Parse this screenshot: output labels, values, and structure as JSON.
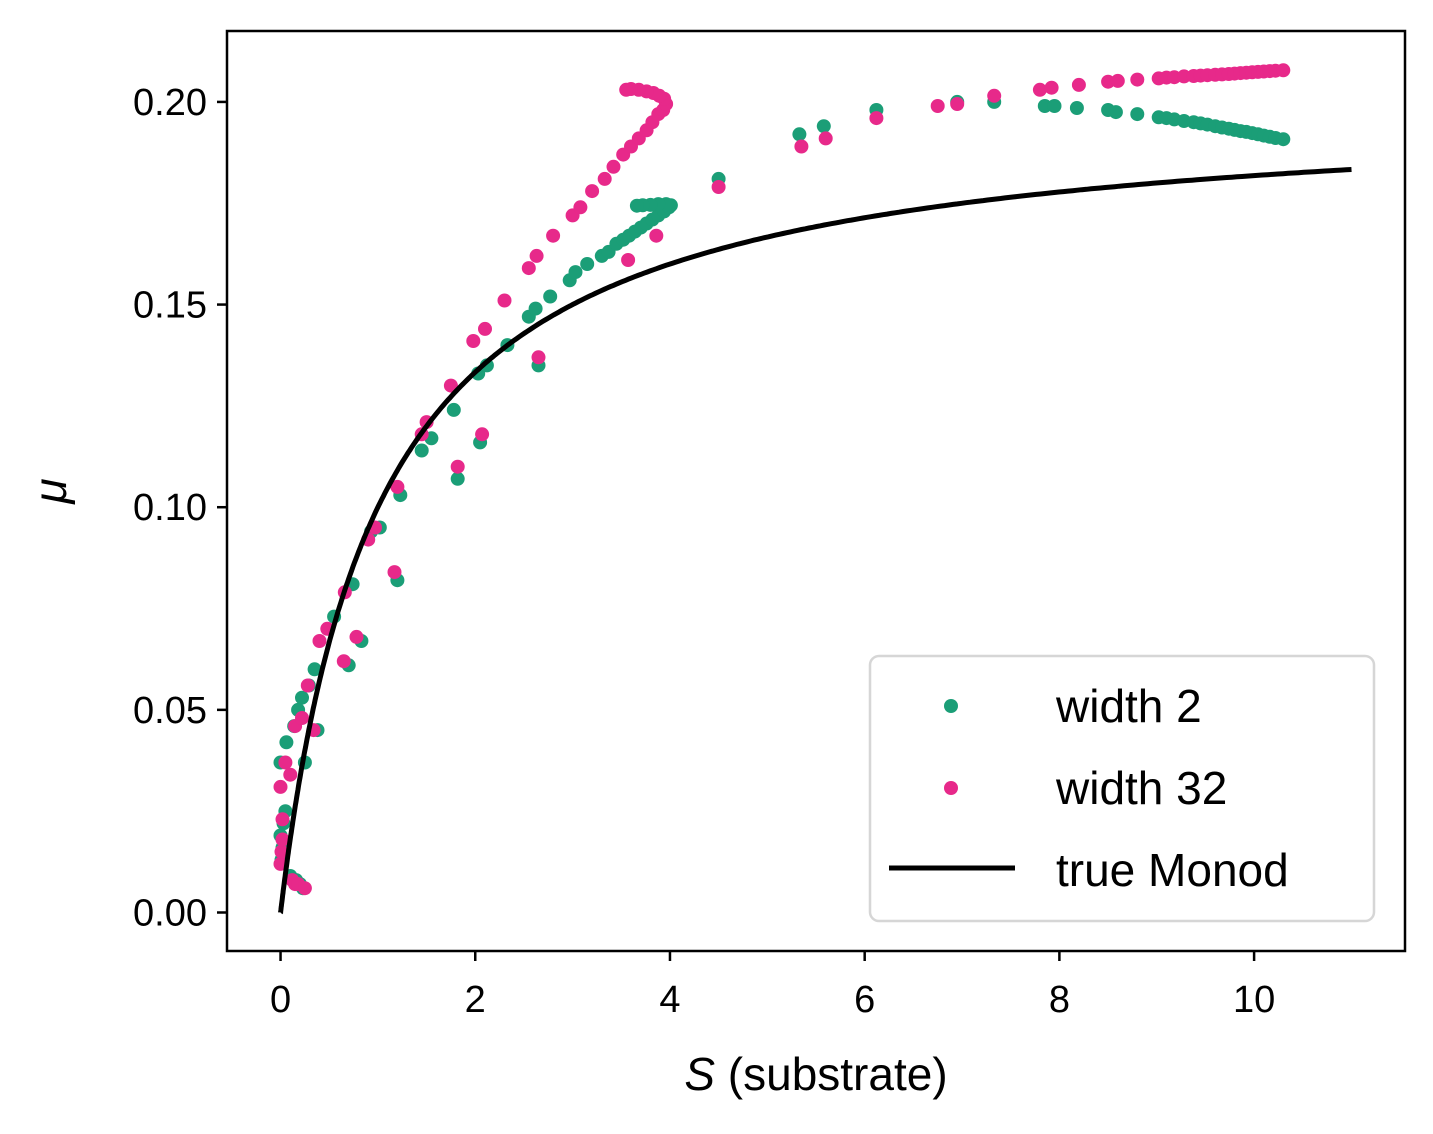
{
  "colors": {
    "series_width_2": "#1b9e77",
    "series_width_32": "#e7298a",
    "true_monod": "#000000",
    "axes": "#000000",
    "legend_border": "#d6d6d6"
  },
  "chart_data": {
    "type": "scatter",
    "xlabel_symbol": "S",
    "xlabel_rest": " (substrate)",
    "ylabel": "μ",
    "xlim": [
      -0.55,
      11.55
    ],
    "ylim": [
      -0.0095,
      0.2175
    ],
    "xticks": [
      0,
      2,
      4,
      6,
      8,
      10
    ],
    "xtick_labels": [
      "0",
      "2",
      "4",
      "6",
      "8",
      "10"
    ],
    "yticks": [
      0.0,
      0.05,
      0.1,
      0.15,
      0.2
    ],
    "ytick_labels": [
      "0.00",
      "0.05",
      "0.10",
      "0.15",
      "0.20"
    ],
    "grid": false,
    "legend_position": "lower right",
    "legend": [
      {
        "label": "width 2",
        "marker": "point"
      },
      {
        "label": "width 32",
        "marker": "point"
      },
      {
        "label": "true Monod",
        "marker": "line"
      }
    ],
    "line_series": {
      "name": "true Monod",
      "function": "mu_max * S / (K_s + S)",
      "mu_max": 0.2,
      "K_s": 1.0,
      "x_range": [
        0,
        11
      ]
    },
    "series": [
      {
        "name": "width 2",
        "points": [
          [
            0.01,
            0.013
          ],
          [
            0.02,
            0.016
          ],
          [
            0.0,
            0.019
          ],
          [
            0.03,
            0.022
          ],
          [
            0.05,
            0.025
          ],
          [
            0.0,
            0.037
          ],
          [
            0.06,
            0.042
          ],
          [
            0.14,
            0.046
          ],
          [
            0.18,
            0.05
          ],
          [
            0.22,
            0.053
          ],
          [
            0.25,
            0.037
          ],
          [
            0.29,
            0.056
          ],
          [
            0.1,
            0.009
          ],
          [
            0.16,
            0.008
          ],
          [
            0.2,
            0.007
          ],
          [
            0.23,
            0.006
          ],
          [
            0.38,
            0.045
          ],
          [
            0.35,
            0.06
          ],
          [
            0.55,
            0.073
          ],
          [
            0.7,
            0.061
          ],
          [
            0.74,
            0.081
          ],
          [
            0.83,
            0.067
          ],
          [
            0.93,
            0.094
          ],
          [
            1.02,
            0.095
          ],
          [
            1.2,
            0.082
          ],
          [
            1.23,
            0.103
          ],
          [
            1.45,
            0.114
          ],
          [
            1.55,
            0.117
          ],
          [
            1.78,
            0.124
          ],
          [
            1.82,
            0.107
          ],
          [
            2.03,
            0.133
          ],
          [
            2.05,
            0.116
          ],
          [
            2.12,
            0.135
          ],
          [
            2.33,
            0.14
          ],
          [
            2.55,
            0.147
          ],
          [
            2.62,
            0.149
          ],
          [
            2.65,
            0.135
          ],
          [
            2.77,
            0.152
          ],
          [
            2.97,
            0.156
          ],
          [
            3.03,
            0.158
          ],
          [
            3.15,
            0.16
          ],
          [
            3.3,
            0.162
          ],
          [
            3.37,
            0.163
          ],
          [
            3.45,
            0.165
          ],
          [
            3.52,
            0.166
          ],
          [
            3.58,
            0.167
          ],
          [
            3.64,
            0.168
          ],
          [
            3.7,
            0.169
          ],
          [
            3.76,
            0.17
          ],
          [
            3.82,
            0.171
          ],
          [
            3.88,
            0.172
          ],
          [
            3.94,
            0.173
          ],
          [
            3.99,
            0.174
          ],
          [
            4.01,
            0.1745
          ],
          [
            3.96,
            0.1748
          ],
          [
            3.88,
            0.1748
          ],
          [
            3.8,
            0.1746
          ],
          [
            3.72,
            0.1745
          ],
          [
            3.66,
            0.1744
          ],
          [
            4.5,
            0.181
          ],
          [
            5.33,
            0.192
          ],
          [
            5.58,
            0.194
          ],
          [
            6.12,
            0.198
          ],
          [
            6.95,
            0.2
          ],
          [
            7.33,
            0.2
          ],
          [
            7.85,
            0.199
          ],
          [
            7.95,
            0.199
          ],
          [
            8.18,
            0.1985
          ],
          [
            8.5,
            0.198
          ],
          [
            8.58,
            0.1975
          ],
          [
            8.8,
            0.197
          ],
          [
            9.02,
            0.1962
          ],
          [
            9.1,
            0.196
          ],
          [
            9.18,
            0.1957
          ],
          [
            9.28,
            0.1953
          ],
          [
            9.38,
            0.195
          ],
          [
            9.45,
            0.1947
          ],
          [
            9.52,
            0.1944
          ],
          [
            9.6,
            0.194
          ],
          [
            9.67,
            0.1937
          ],
          [
            9.74,
            0.1934
          ],
          [
            9.8,
            0.1931
          ],
          [
            9.86,
            0.1928
          ],
          [
            9.92,
            0.1926
          ],
          [
            9.98,
            0.1923
          ],
          [
            10.04,
            0.192
          ],
          [
            10.1,
            0.1917
          ],
          [
            10.16,
            0.1914
          ],
          [
            10.22,
            0.1911
          ],
          [
            10.3,
            0.1908
          ]
        ]
      },
      {
        "name": "width 32",
        "points": [
          [
            0.0,
            0.012
          ],
          [
            0.01,
            0.015
          ],
          [
            0.02,
            0.018
          ],
          [
            0.0,
            0.031
          ],
          [
            0.02,
            0.023
          ],
          [
            0.05,
            0.037
          ],
          [
            0.1,
            0.034
          ],
          [
            0.12,
            0.008
          ],
          [
            0.15,
            0.007
          ],
          [
            0.18,
            0.007
          ],
          [
            0.25,
            0.006
          ],
          [
            0.15,
            0.046
          ],
          [
            0.22,
            0.048
          ],
          [
            0.28,
            0.056
          ],
          [
            0.34,
            0.045
          ],
          [
            0.4,
            0.067
          ],
          [
            0.48,
            0.07
          ],
          [
            0.65,
            0.062
          ],
          [
            0.66,
            0.079
          ],
          [
            0.78,
            0.068
          ],
          [
            0.9,
            0.092
          ],
          [
            0.97,
            0.095
          ],
          [
            1.17,
            0.084
          ],
          [
            1.2,
            0.105
          ],
          [
            1.45,
            0.118
          ],
          [
            1.5,
            0.121
          ],
          [
            1.75,
            0.13
          ],
          [
            1.82,
            0.11
          ],
          [
            1.98,
            0.141
          ],
          [
            2.07,
            0.118
          ],
          [
            2.1,
            0.144
          ],
          [
            2.3,
            0.151
          ],
          [
            2.55,
            0.159
          ],
          [
            2.63,
            0.162
          ],
          [
            2.65,
            0.137
          ],
          [
            2.8,
            0.167
          ],
          [
            3.0,
            0.172
          ],
          [
            3.08,
            0.174
          ],
          [
            3.2,
            0.178
          ],
          [
            3.33,
            0.181
          ],
          [
            3.42,
            0.184
          ],
          [
            3.52,
            0.187
          ],
          [
            3.6,
            0.189
          ],
          [
            3.68,
            0.191
          ],
          [
            3.76,
            0.193
          ],
          [
            3.82,
            0.195
          ],
          [
            3.88,
            0.197
          ],
          [
            3.93,
            0.198
          ],
          [
            3.96,
            0.1995
          ],
          [
            3.94,
            0.2008
          ],
          [
            3.89,
            0.2015
          ],
          [
            3.83,
            0.2022
          ],
          [
            3.76,
            0.2026
          ],
          [
            3.68,
            0.203
          ],
          [
            3.6,
            0.2032
          ],
          [
            3.55,
            0.203
          ],
          [
            3.57,
            0.161
          ],
          [
            3.86,
            0.167
          ],
          [
            4.5,
            0.179
          ],
          [
            5.35,
            0.189
          ],
          [
            5.6,
            0.191
          ],
          [
            6.12,
            0.196
          ],
          [
            6.75,
            0.199
          ],
          [
            6.95,
            0.1995
          ],
          [
            7.33,
            0.2015
          ],
          [
            7.8,
            0.203
          ],
          [
            7.92,
            0.2035
          ],
          [
            8.2,
            0.2042
          ],
          [
            8.5,
            0.205
          ],
          [
            8.6,
            0.2052
          ],
          [
            8.8,
            0.2055
          ],
          [
            9.02,
            0.2058
          ],
          [
            9.1,
            0.206
          ],
          [
            9.18,
            0.2061
          ],
          [
            9.28,
            0.2063
          ],
          [
            9.38,
            0.2064
          ],
          [
            9.45,
            0.2065
          ],
          [
            9.52,
            0.2066
          ],
          [
            9.6,
            0.2067
          ],
          [
            9.67,
            0.2068
          ],
          [
            9.74,
            0.2069
          ],
          [
            9.8,
            0.207
          ],
          [
            9.86,
            0.2071
          ],
          [
            9.92,
            0.2072
          ],
          [
            9.98,
            0.2073
          ],
          [
            10.04,
            0.2074
          ],
          [
            10.1,
            0.2075
          ],
          [
            10.16,
            0.2076
          ],
          [
            10.22,
            0.2077
          ],
          [
            10.3,
            0.2078
          ]
        ]
      }
    ]
  }
}
